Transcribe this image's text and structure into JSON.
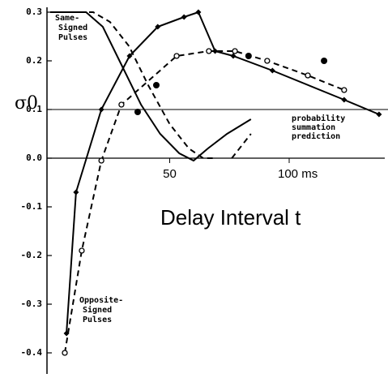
{
  "chart_data": {
    "type": "line",
    "ylabel": "σ0",
    "xlabel": "Delay Interval t",
    "xlim": [
      0,
      140
    ],
    "ylim": [
      -0.43,
      0.31
    ],
    "xticks": [
      50,
      {
        "value": 100,
        "label": "100 ms"
      }
    ],
    "yticks": [
      0.3,
      0.2,
      0.1,
      {
        "value": 0,
        "label": "0.0"
      },
      -0.1,
      -0.2,
      -0.3,
      -0.4
    ],
    "reference_line": {
      "value": 0.1,
      "label": "probability summation prediction"
    },
    "annotations": [
      "Same-Signed Pulses",
      "Opposite-Signed Pulses"
    ],
    "series": [
      {
        "style": "solid",
        "marker": "none",
        "color": "#000",
        "x": [
          0,
          15,
          22,
          30,
          38,
          46,
          54,
          60,
          66,
          74,
          84
        ],
        "values": [
          0.3,
          0.3,
          0.27,
          0.19,
          0.11,
          0.05,
          0.01,
          -0.005,
          0.02,
          0.05,
          0.08
        ]
      },
      {
        "style": "dashed",
        "marker": "none",
        "color": "#000",
        "x": [
          0,
          18,
          25,
          33,
          41,
          50,
          58,
          64,
          68,
          71,
          76,
          84
        ],
        "values": [
          0.3,
          0.3,
          0.28,
          0.23,
          0.15,
          0.07,
          0.02,
          0,
          0,
          null,
          0,
          0.05
        ]
      },
      {
        "style": "solid",
        "marker": "diamond",
        "color": "#000",
        "x": [
          6.8,
          10.8,
          21.4,
          33.2,
          45,
          56,
          62,
          69,
          76.6,
          93,
          123,
          137.6
        ],
        "values": [
          -0.36,
          -0.07,
          0.1,
          0.21,
          0.27,
          0.29,
          0.3,
          0.22,
          0.21,
          0.18,
          0.12,
          0.09
        ]
      },
      {
        "style": "dashed",
        "marker": "open-circle",
        "color": "#000",
        "x": [
          6.1,
          13.2,
          21.4,
          29.8,
          52.9,
          66.4,
          77.3,
          90.8,
          107.8,
          123
        ],
        "values": [
          -0.4,
          -0.19,
          -0.005,
          0.11,
          0.21,
          0.22,
          0.22,
          0.2,
          0.17,
          0.14
        ]
      },
      {
        "style": "none",
        "marker": "filled-circle",
        "color": "#000",
        "x": [
          36.6,
          44.4,
          83,
          114.6
        ],
        "values": [
          0.095,
          0.15,
          0.21,
          0.2
        ]
      }
    ]
  }
}
